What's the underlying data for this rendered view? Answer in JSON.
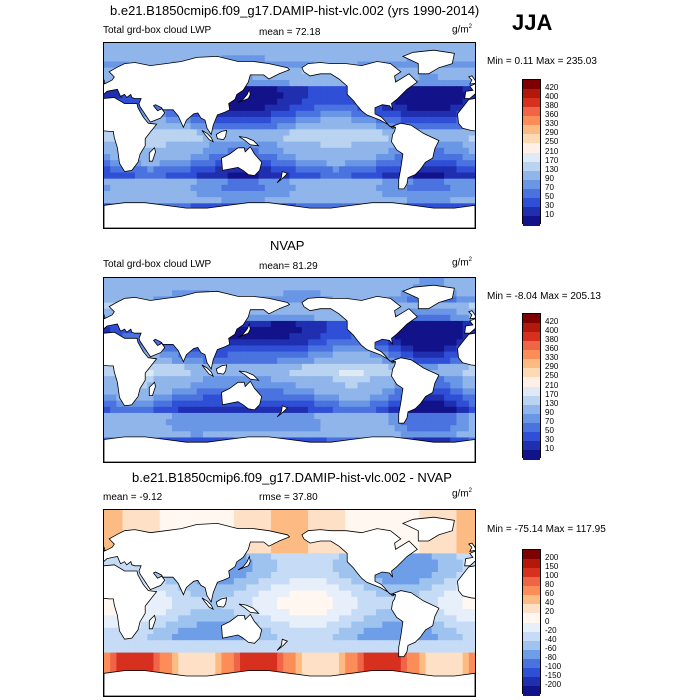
{
  "season": "JJA",
  "panels": [
    {
      "title": "b.e21.B1850cmip6.f09_g17.DAMIP-hist-vlc.002 (yrs 1990-2014)",
      "left_label": "Total grd-box cloud LWP",
      "mean_label": "mean =  72.18",
      "units": "g/m",
      "units_sup": "2",
      "minmax": "Min =   0.11 Max = 235.03",
      "levels": [
        "420",
        "400",
        "380",
        "360",
        "330",
        "290",
        "250",
        "210",
        "170",
        "130",
        "90",
        "70",
        "50",
        "30",
        "10"
      ],
      "colors": [
        "#7f0000",
        "#b2180c",
        "#d7301f",
        "#ef6548",
        "#fc8d59",
        "#fdbb84",
        "#fdd9b5",
        "#fef0e6",
        "#deebf7",
        "#b9d3f0",
        "#8fb5ea",
        "#6a96e6",
        "#4a73df",
        "#2f4fd6",
        "#1f2fb0",
        "#12128a"
      ],
      "mode": "abs1"
    },
    {
      "title": "NVAP",
      "left_label": "Total grd-box cloud LWP",
      "mean_label": "mean=  81.29",
      "units": "g/m",
      "units_sup": "2",
      "minmax": "Min =  -8.04 Max = 205.13",
      "levels": [
        "420",
        "400",
        "380",
        "360",
        "330",
        "290",
        "250",
        "210",
        "170",
        "130",
        "90",
        "70",
        "50",
        "30",
        "10"
      ],
      "colors": [
        "#7f0000",
        "#b2180c",
        "#d7301f",
        "#ef6548",
        "#fc8d59",
        "#fdbb84",
        "#fdd9b5",
        "#fef0e6",
        "#deebf7",
        "#b9d3f0",
        "#8fb5ea",
        "#6a96e6",
        "#4a73df",
        "#2f4fd6",
        "#1f2fb0",
        "#12128a"
      ],
      "mode": "abs2"
    },
    {
      "title": "b.e21.B1850cmip6.f09_g17.DAMIP-hist-vlc.002 - NVAP",
      "left_label": "mean =  -9.12",
      "mean_label": "rmse =  37.80",
      "units": "g/m",
      "units_sup": "2",
      "minmax": "Min = -75.14 Max = 117.95",
      "levels": [
        "200",
        "150",
        "100",
        "80",
        "60",
        "40",
        "20",
        "0",
        "-20",
        "-40",
        "-60",
        "-80",
        "-100",
        "-150",
        "-200"
      ],
      "colors": [
        "#7f0000",
        "#b2180c",
        "#d7301f",
        "#ef6548",
        "#fc8d59",
        "#fdbb84",
        "#fde0c5",
        "#fff7f0",
        "#e6effa",
        "#c6dbf5",
        "#9ec3ef",
        "#6f9ee8",
        "#4a73df",
        "#2f4fd6",
        "#1f2fb0",
        "#12128a"
      ],
      "mode": "diff"
    }
  ]
}
